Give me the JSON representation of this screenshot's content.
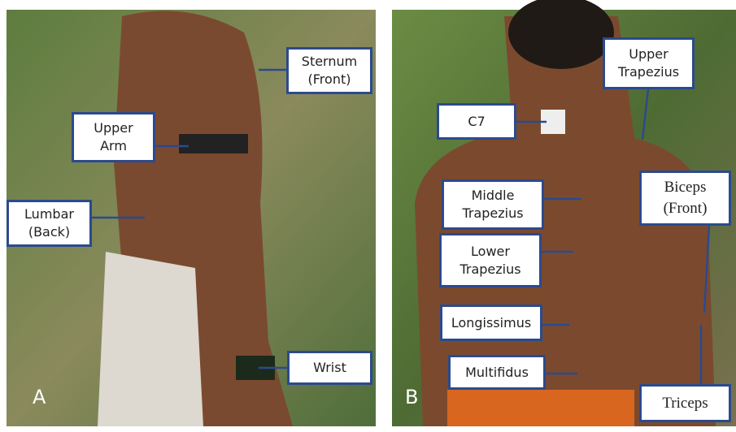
{
  "panels": [
    {
      "letter": "A",
      "labels": [
        "Sternum\n(Front)",
        "Upper\nArm",
        "Lumbar\n(Back)",
        "Wrist"
      ]
    },
    {
      "letter": "B",
      "labels": [
        "C7",
        "Upper\nTrapezius",
        "Middle\nTrapezius",
        "Biceps\n(Front)",
        "Lower\nTrapezius",
        "Longissimus",
        "Multifidus",
        "Triceps"
      ]
    }
  ]
}
